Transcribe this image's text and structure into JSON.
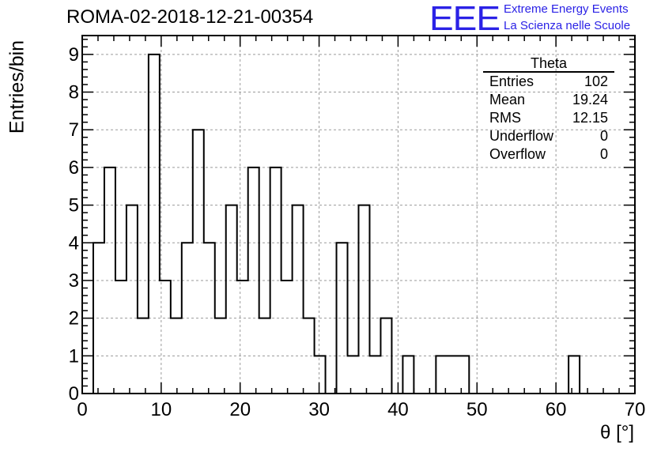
{
  "title": "ROMA-02-2018-12-21-00354",
  "logo": {
    "mark": "EEE",
    "line1": "Extreme Energy Events",
    "line2": "La Scienza nelle Scuole",
    "color": "#2b22e6"
  },
  "stats_box": {
    "title": "Theta",
    "rows": [
      {
        "label": "Entries",
        "value": "102"
      },
      {
        "label": "Mean",
        "value": "19.24"
      },
      {
        "label": "RMS",
        "value": "12.15"
      },
      {
        "label": "Underflow",
        "value": "0"
      },
      {
        "label": "Overflow",
        "value": "0"
      }
    ]
  },
  "chart_data": {
    "type": "bar",
    "title": "ROMA-02-2018-12-21-00354",
    "xlabel": "θ [°]",
    "ylabel": "Entries/bin",
    "xlim": [
      0,
      70
    ],
    "ylim": [
      0,
      9.5
    ],
    "grid": true,
    "bin_width": 1.4,
    "x_ticks": [
      0,
      10,
      20,
      30,
      40,
      50,
      60,
      70
    ],
    "y_ticks": [
      0,
      1,
      2,
      3,
      4,
      5,
      6,
      7,
      8,
      9
    ],
    "x": [
      0,
      1.4,
      2.8,
      4.2,
      5.6,
      7.0,
      8.4,
      9.8,
      11.2,
      12.6,
      14.0,
      15.4,
      16.8,
      18.2,
      19.6,
      21.0,
      22.4,
      23.8,
      25.2,
      26.6,
      28.0,
      29.4,
      30.8,
      32.2,
      33.6,
      35.0,
      36.4,
      37.8,
      39.2,
      40.6,
      42.0,
      43.4,
      44.8,
      46.2,
      47.6,
      49.0,
      50.4,
      51.8,
      53.2,
      54.6,
      56.0,
      57.4,
      58.8,
      60.2,
      61.6,
      63.0,
      64.4,
      65.8,
      67.2,
      68.6
    ],
    "values": [
      0,
      4,
      6,
      3,
      5,
      2,
      9,
      3,
      2,
      4,
      7,
      4,
      2,
      5,
      3,
      6,
      2,
      6,
      3,
      5,
      2,
      1,
      0,
      4,
      1,
      5,
      1,
      2,
      0,
      1,
      0,
      0,
      1,
      1,
      1,
      0,
      0,
      0,
      0,
      0,
      0,
      0,
      0,
      0,
      1,
      0,
      0,
      0,
      0,
      0
    ],
    "line_color": "#000000"
  }
}
